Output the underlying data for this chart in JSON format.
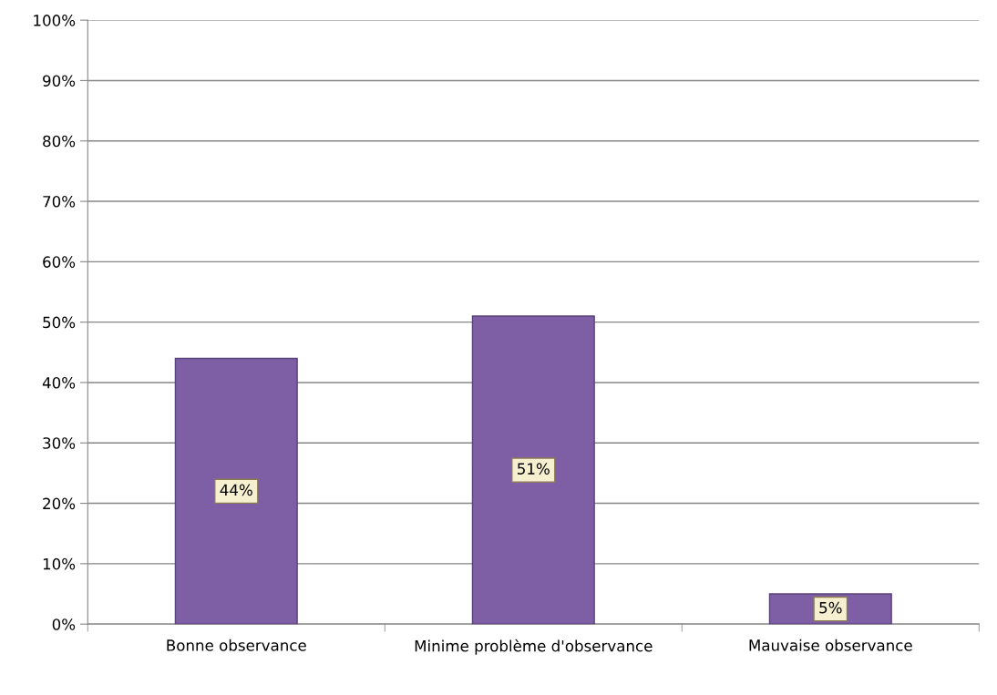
{
  "chart_data": {
    "type": "bar",
    "categories": [
      "Bonne observance",
      "Minime problème d'observance",
      "Mauvaise observance"
    ],
    "values": [
      44,
      51,
      5
    ],
    "color": "#7e5fa6",
    "value_labels": [
      "44%",
      "51%",
      "5%"
    ],
    "ylim": [
      0,
      100
    ],
    "yticks": [
      {
        "value": 0,
        "label": "0%"
      },
      {
        "value": 10,
        "label": "10%"
      },
      {
        "value": 20,
        "label": "20%"
      },
      {
        "value": 30,
        "label": "30%"
      },
      {
        "value": 40,
        "label": "40%"
      },
      {
        "value": 50,
        "label": "50%"
      },
      {
        "value": 60,
        "label": "60%"
      },
      {
        "value": 70,
        "label": "70%"
      },
      {
        "value": 80,
        "label": "80%"
      },
      {
        "value": 90,
        "label": "90%"
      },
      {
        "value": 100,
        "label": "100%"
      }
    ],
    "grid": "y",
    "legend": false
  }
}
